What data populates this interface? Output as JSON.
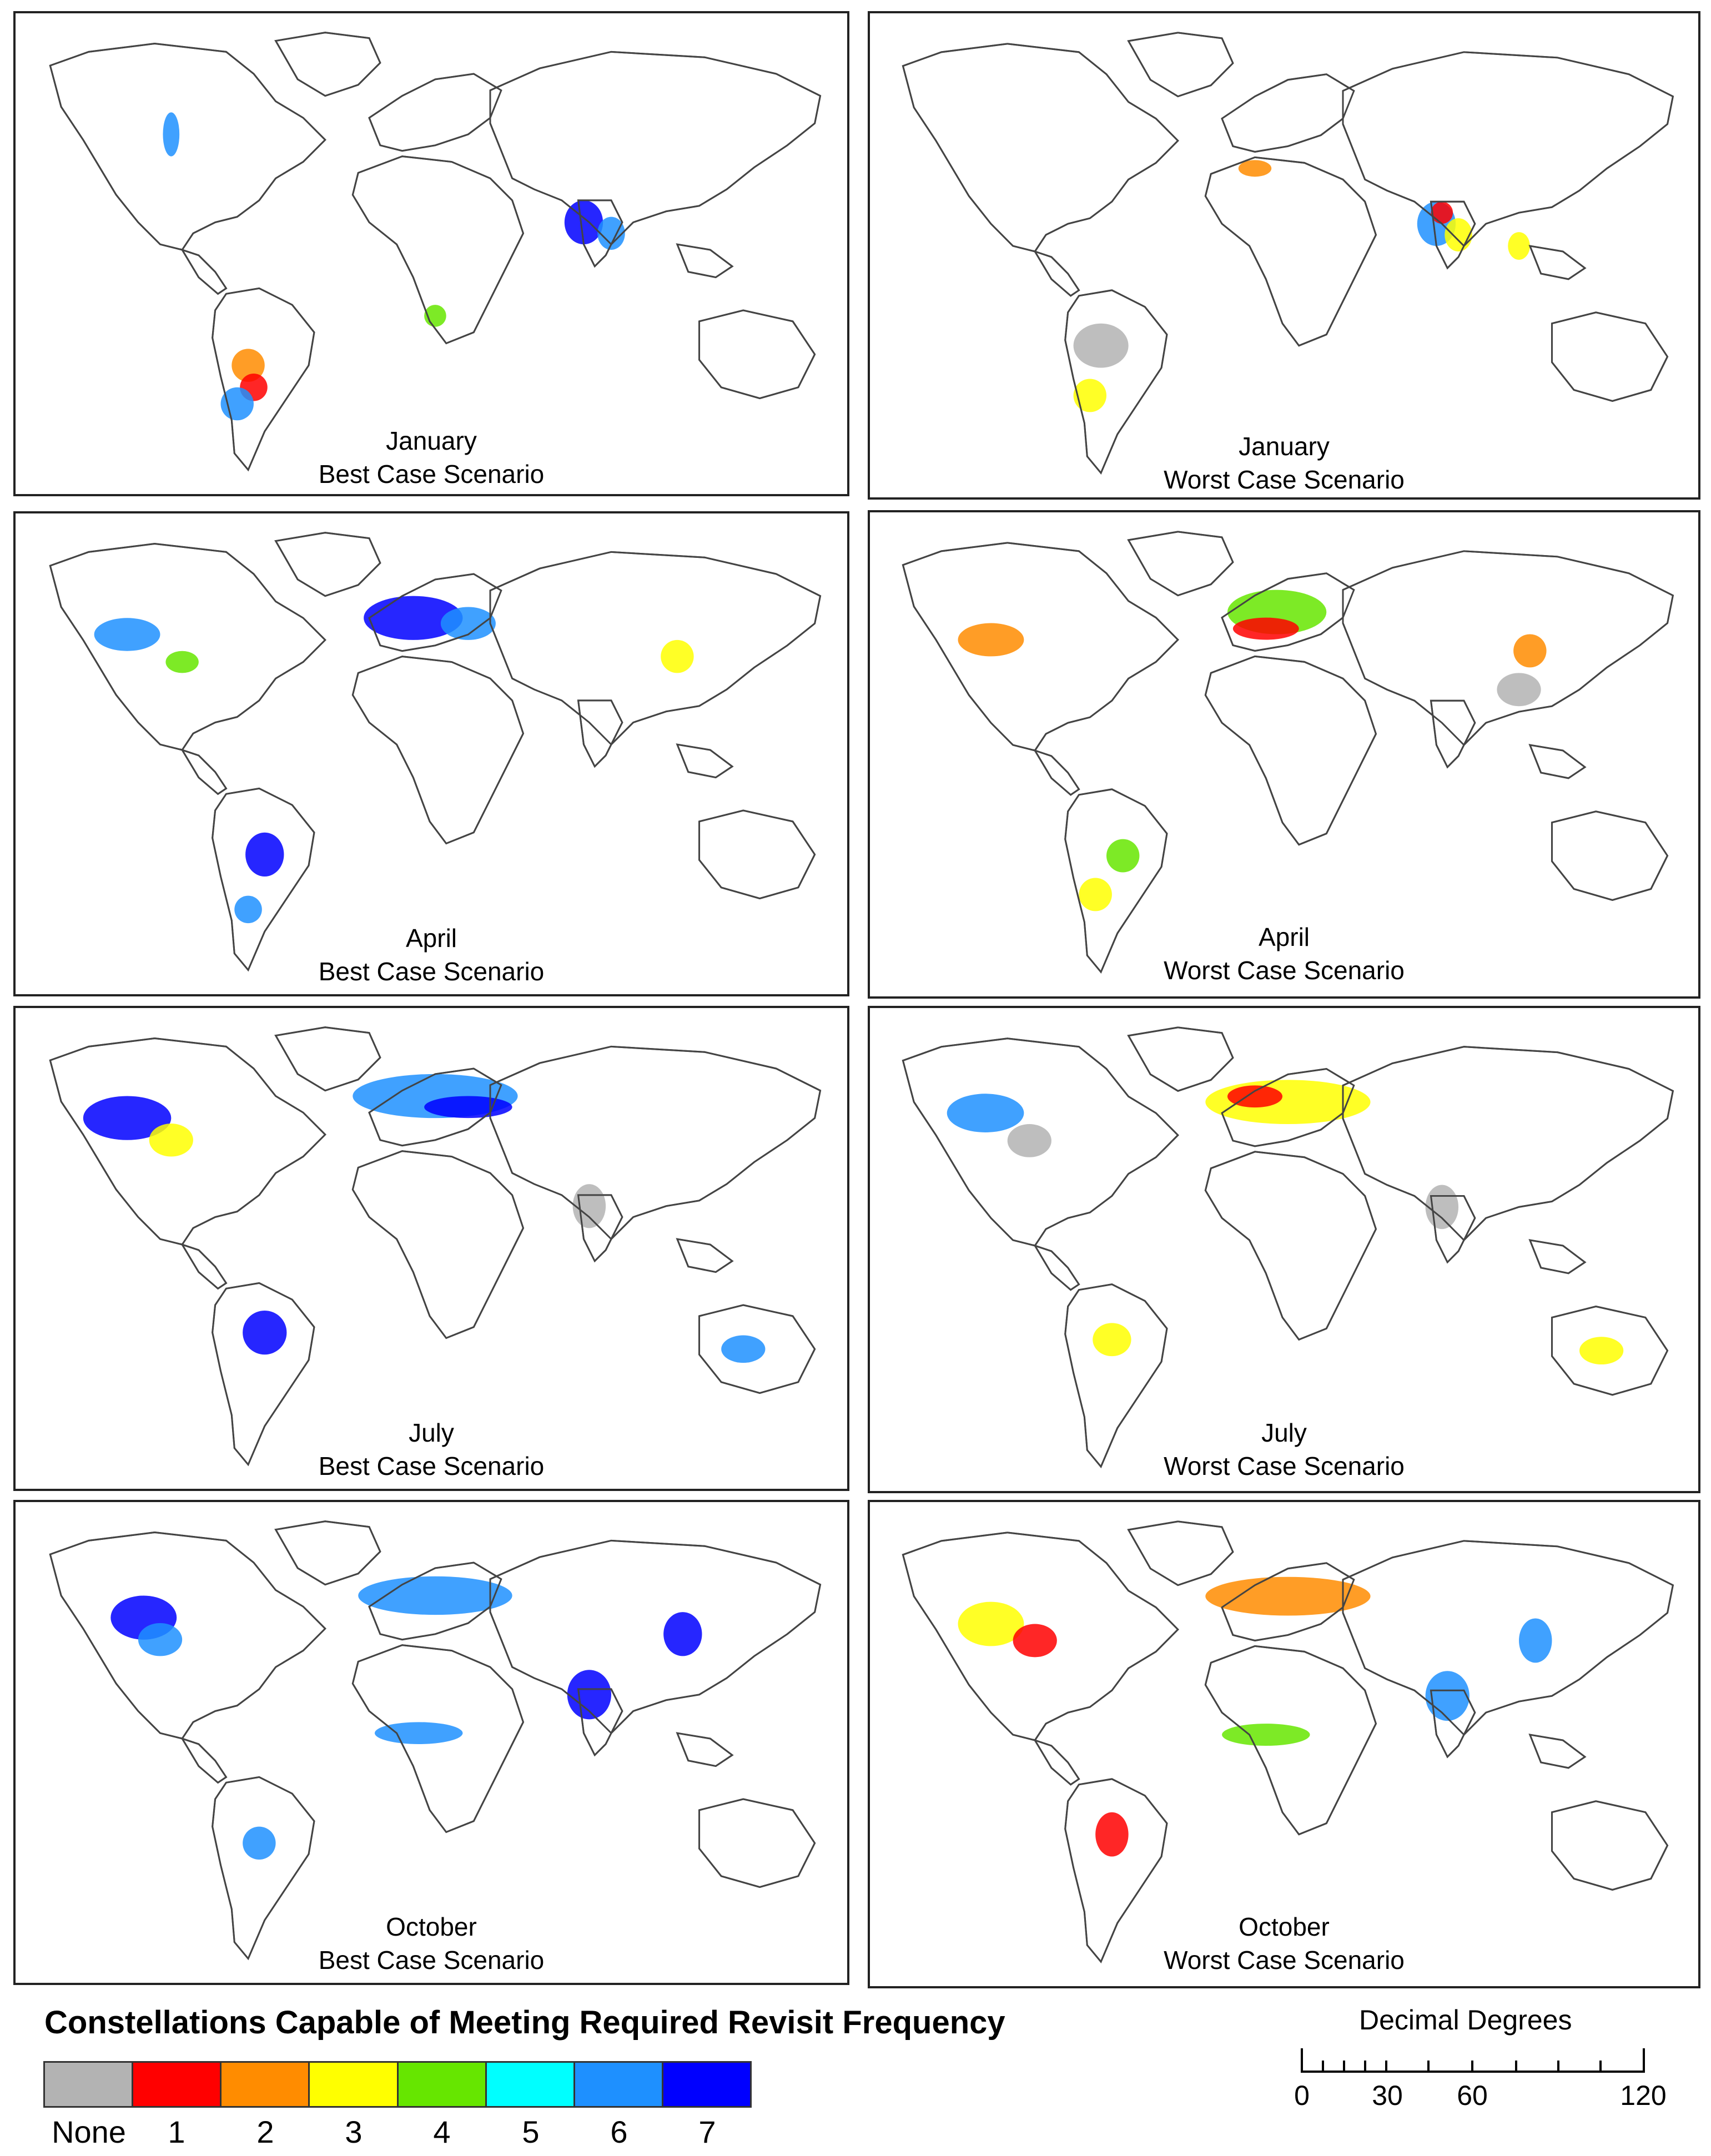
{
  "panels": [
    {
      "month": "January",
      "scenario": "Best Case Scenario"
    },
    {
      "month": "January",
      "scenario": "Worst Case Scenario"
    },
    {
      "month": "April",
      "scenario": "Best Case Scenario"
    },
    {
      "month": "April",
      "scenario": "Worst Case Scenario"
    },
    {
      "month": "July",
      "scenario": "Best Case Scenario"
    },
    {
      "month": "July",
      "scenario": "Worst Case Scenario"
    },
    {
      "month": "October",
      "scenario": "Best Case Scenario"
    },
    {
      "month": "October",
      "scenario": "Worst Case Scenario"
    }
  ],
  "legend": {
    "title": "Constellations Capable of Meeting Required Revisit Frequency",
    "classes": [
      {
        "label": "None",
        "color": "#b3b3b3"
      },
      {
        "label": "1",
        "color": "#ff0000"
      },
      {
        "label": "2",
        "color": "#ff8c00"
      },
      {
        "label": "3",
        "color": "#ffff00"
      },
      {
        "label": "4",
        "color": "#66e600"
      },
      {
        "label": "5",
        "color": "#00ffff"
      },
      {
        "label": "6",
        "color": "#1e90ff"
      },
      {
        "label": "7",
        "color": "#0000ff"
      }
    ]
  },
  "scale": {
    "title": "Decimal Degrees",
    "labels": [
      "0",
      "30",
      "60",
      "120"
    ]
  }
}
